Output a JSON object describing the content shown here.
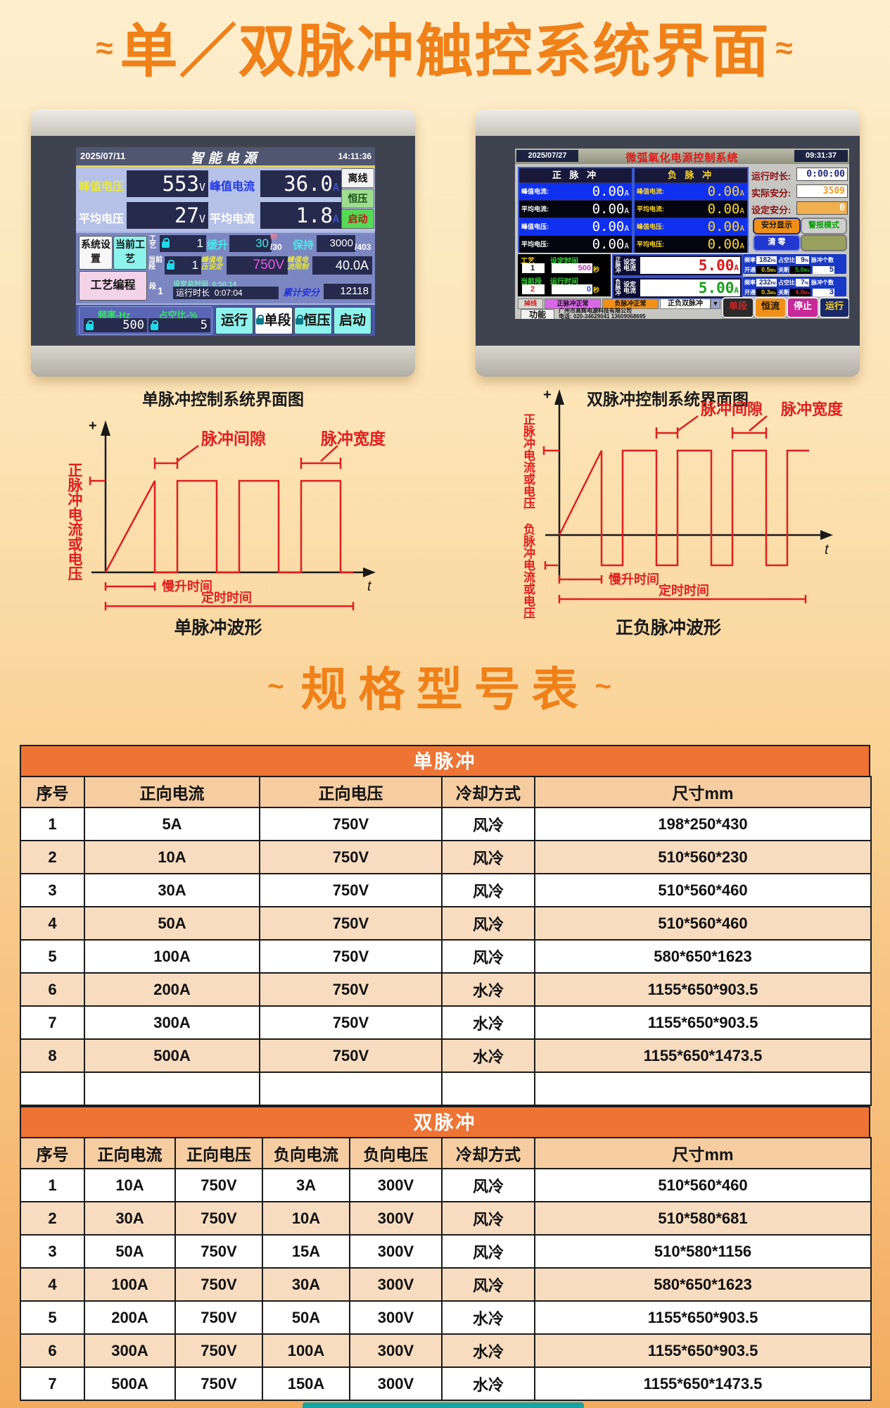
{
  "header": {
    "tilde_left": "≈",
    "title": "单／双脉冲触控系统界面",
    "tilde_right": "≈"
  },
  "left_device": {
    "caption": "单脉冲控制系统界面图",
    "date": "2025/07/11",
    "title": "智能电源",
    "time": "14:11:36",
    "meas": {
      "pv_label": "峰值电压",
      "pv": "553",
      "pv_unit": "V",
      "pa_label": "峰值电流",
      "pa": "36.0",
      "pa_unit": "A",
      "av_label": "平均电压",
      "av": "27",
      "av_unit": "V",
      "aa_label": "平均电流",
      "aa": "1.8",
      "aa_unit": "A"
    },
    "side_buttons": [
      "离线",
      "恒压",
      "启动"
    ],
    "btn_system": "系统设置",
    "btn_current": "当前工艺",
    "btn_program": "工艺编程",
    "row1": {
      "craft": "工艺",
      "craft_v": "1",
      "ramp": "缓升",
      "ramp_v": "30",
      "ramp_s": "/30",
      "ramp_u": "秒",
      "hold": "保持",
      "hold_v": "3000",
      "hold_s": "/403"
    },
    "row2": {
      "seg": "当前段",
      "seg_v": "1",
      "pvset": "峰值电压设定",
      "pvset_v": "750V",
      "palim": "峰值电流限制",
      "palim_v": "40.0A"
    },
    "row3": {
      "seg": "段",
      "seg_v": "1",
      "total": "设定总时间",
      "total_v": "0:50:14",
      "run": "运行时长",
      "run_v": "0:07:04",
      "ah": "累计安分",
      "ah_v": "12118"
    },
    "freq": "频率-Hz",
    "freq_v": "500",
    "duty": "占空比-%",
    "duty_v": "5",
    "bottom_buttons": [
      "运行",
      "单段",
      "恒压",
      "启动"
    ]
  },
  "right_device": {
    "caption": "双脉冲控制系统界面图",
    "date": "2025/07/27",
    "title": "微弧氧化电源控制系统",
    "time": "09:31:37",
    "pos_title": "正 脉 冲",
    "neg_title": "负 脉 冲",
    "pos_rows": [
      {
        "label": "峰值电流",
        "value": "0.00",
        "unit": "A"
      },
      {
        "label": "平均电流",
        "value": "0.00",
        "unit": "A"
      },
      {
        "label": "峰值电压",
        "value": "0.00",
        "unit": "A"
      },
      {
        "label": "平均电压",
        "value": "0.00",
        "unit": "A"
      }
    ],
    "neg_rows": [
      {
        "label": "峰值电流",
        "value": "0.00",
        "unit": "A"
      },
      {
        "label": "平均电流",
        "value": "0.00",
        "unit": "A"
      },
      {
        "label": "峰值电压",
        "value": "0.00",
        "unit": "A"
      },
      {
        "label": "平均电压",
        "value": "0.00",
        "unit": "A"
      }
    ],
    "info": {
      "run": "运行时长:",
      "run_v": "0:00:00",
      "act": "实际安分:",
      "act_v": "3509",
      "set": "设定安分:",
      "set_v": "0",
      "btn_ah": "安分显示",
      "btn_alarm": "警报模式",
      "btn_clear": "清 零",
      "btn_blank": ""
    },
    "set1": {
      "l1": "工艺",
      "v1": "1",
      "l2": "设定时间",
      "v2": "500",
      "u2": "秒",
      "pulse": "正脉冲",
      "set": "设定电流",
      "val": "5.00",
      "unit": "A",
      "freq_l": "频率",
      "freq": "182",
      "freq_u": "Hz",
      "duty_l": "占空比",
      "duty": "9",
      "duty_u": "%",
      "count_l": "脉冲个数",
      "on_l": "开通",
      "on": "0.5",
      "on_u": "Ms",
      "off_l": "关断",
      "off": "5.0",
      "off_u": "Ms",
      "count": "5"
    },
    "set2": {
      "l1": "当前段",
      "v1": "2",
      "l2": "运行时间",
      "v2": "0",
      "u2": "秒",
      "pulse": "负脉冲",
      "set": "设定电流",
      "val": "5.00",
      "unit": "A",
      "freq_l": "频率",
      "freq": "232",
      "freq_u": "Hz",
      "duty_l": "占空比",
      "duty": "7",
      "duty_u": "%",
      "count_l": "脉冲个数",
      "on_l": "开通",
      "on": "0.3",
      "on_u": "Ms",
      "off_l": "关断",
      "off": "4.0",
      "off_u": "Ms",
      "count": "3"
    },
    "status": {
      "offline": "掉线",
      "pos_ok": "正脉冲正常",
      "neg_ok": "负脉冲正常",
      "mode": "正负双脉冲",
      "func": "功能",
      "company": "广州市高辉电源科技有限公司",
      "phone": "电话: 020-34629041  13609068695"
    },
    "buttons": [
      "单段",
      "恒流",
      "停止",
      "运行"
    ]
  },
  "wave_left": {
    "caption": "单脉冲波形",
    "ylabel": "正脉冲电流或电压",
    "plus": "+",
    "t": "t",
    "gap": "脉冲间隙",
    "width": "脉冲宽度",
    "rise": "慢升时间",
    "timing": "定时时间"
  },
  "wave_right": {
    "caption": "正负脉冲波形",
    "ylabel_pos": "正脉冲电流或电压",
    "ylabel_neg": "负脉冲电流或电压",
    "plus": "+",
    "t": "t",
    "gap": "脉冲间隙",
    "width": "脉冲宽度",
    "rise": "慢升时间",
    "timing": "定时时间"
  },
  "spec": {
    "tilde": "~",
    "title": "规格型号表",
    "table1": {
      "band": "单脉冲",
      "headers": [
        "序号",
        "正向电流",
        "正向电压",
        "冷却方式",
        "尺寸mm"
      ],
      "cols": [
        91,
        249,
        259,
        132,
        478
      ],
      "rows": [
        [
          "1",
          "5A",
          "750V",
          "风冷",
          "198*250*430"
        ],
        [
          "2",
          "10A",
          "750V",
          "风冷",
          "510*560*230"
        ],
        [
          "3",
          "30A",
          "750V",
          "风冷",
          "510*560*460"
        ],
        [
          "4",
          "50A",
          "750V",
          "风冷",
          "510*560*460"
        ],
        [
          "5",
          "100A",
          "750V",
          "风冷",
          "580*650*1623"
        ],
        [
          "6",
          "200A",
          "750V",
          "水冷",
          "1155*650*903.5"
        ],
        [
          "7",
          "300A",
          "750V",
          "水冷",
          "1155*650*903.5"
        ],
        [
          "8",
          "500A",
          "750V",
          "水冷",
          "1155*650*1473.5"
        ]
      ],
      "empty_row": true
    },
    "table2": {
      "band": "双脉冲",
      "headers": [
        "序号",
        "正向电流",
        "正向电压",
        "负向电流",
        "负向电压",
        "冷却方式",
        "尺寸mm"
      ],
      "cols": [
        91,
        129,
        124,
        124,
        131,
        132,
        478
      ],
      "rows": [
        [
          "1",
          "10A",
          "750V",
          "3A",
          "300V",
          "风冷",
          "510*560*460"
        ],
        [
          "2",
          "30A",
          "750V",
          "10A",
          "300V",
          "风冷",
          "510*580*681"
        ],
        [
          "3",
          "50A",
          "750V",
          "15A",
          "300V",
          "风冷",
          "510*580*1156"
        ],
        [
          "4",
          "100A",
          "750V",
          "30A",
          "300V",
          "风冷",
          "580*650*1623"
        ],
        [
          "5",
          "200A",
          "750V",
          "50A",
          "300V",
          "水冷",
          "1155*650*903.5"
        ],
        [
          "6",
          "300A",
          "750V",
          "100A",
          "300V",
          "水冷",
          "1155*650*903.5"
        ],
        [
          "7",
          "500A",
          "750V",
          "150A",
          "300V",
          "水冷",
          "1155*650*1473.5"
        ]
      ],
      "empty_row": false
    }
  }
}
